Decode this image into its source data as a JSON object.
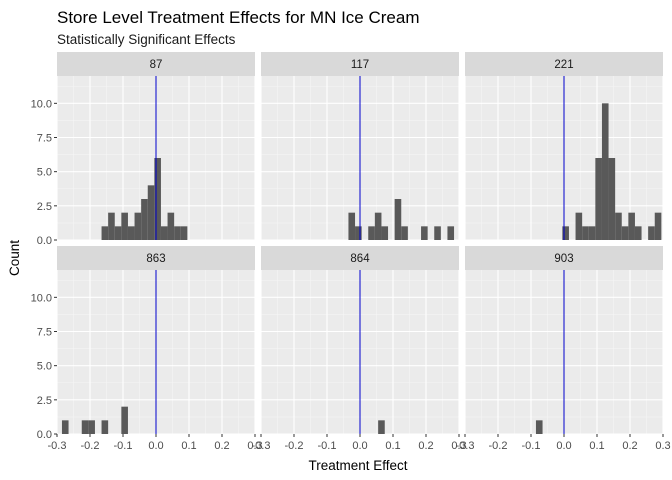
{
  "chart_data": {
    "type": "bar",
    "title": "Store Level Treatment Effects for MN Ice Cream",
    "subtitle": "Statistically Significant Effects",
    "xlabel": "Treatment Effect",
    "ylabel": "Count",
    "xlim": [
      -0.3,
      0.3
    ],
    "ylim": [
      0,
      12
    ],
    "x_ticks": [
      -0.3,
      -0.2,
      -0.1,
      0.0,
      0.1,
      0.2,
      0.3
    ],
    "x_tick_labels": [
      "-0.3",
      "-0.2",
      "-0.1",
      "0.0",
      "0.1",
      "0.2",
      "0.3"
    ],
    "y_ticks": [
      0,
      2.5,
      5,
      7.5,
      10
    ],
    "y_tick_labels": [
      "0.0",
      "2.5",
      "5.0",
      "7.5",
      "10.0"
    ],
    "bin_width": 0.02,
    "grid": true,
    "reference_line": {
      "x": 0,
      "color": "#0000cc"
    },
    "bar_color": "#595959",
    "facets": [
      {
        "label": "87",
        "bins": [
          {
            "x": -0.155,
            "count": 1
          },
          {
            "x": -0.135,
            "count": 2
          },
          {
            "x": -0.115,
            "count": 1
          },
          {
            "x": -0.095,
            "count": 2
          },
          {
            "x": -0.075,
            "count": 1
          },
          {
            "x": -0.055,
            "count": 2
          },
          {
            "x": -0.035,
            "count": 3
          },
          {
            "x": -0.015,
            "count": 4
          },
          {
            "x": 0.005,
            "count": 6
          },
          {
            "x": 0.025,
            "count": 1
          },
          {
            "x": 0.045,
            "count": 2
          },
          {
            "x": 0.065,
            "count": 1
          },
          {
            "x": 0.085,
            "count": 1
          }
        ]
      },
      {
        "label": "117",
        "bins": [
          {
            "x": -0.025,
            "count": 2
          },
          {
            "x": -0.005,
            "count": 1
          },
          {
            "x": 0.035,
            "count": 1
          },
          {
            "x": 0.055,
            "count": 2
          },
          {
            "x": 0.075,
            "count": 1
          },
          {
            "x": 0.115,
            "count": 3
          },
          {
            "x": 0.135,
            "count": 1
          },
          {
            "x": 0.195,
            "count": 1
          },
          {
            "x": 0.235,
            "count": 1
          },
          {
            "x": 0.275,
            "count": 1
          }
        ]
      },
      {
        "label": "221",
        "bins": [
          {
            "x": 0.005,
            "count": 1
          },
          {
            "x": 0.045,
            "count": 2
          },
          {
            "x": 0.065,
            "count": 1
          },
          {
            "x": 0.085,
            "count": 1
          },
          {
            "x": 0.105,
            "count": 6
          },
          {
            "x": 0.125,
            "count": 10
          },
          {
            "x": 0.145,
            "count": 6
          },
          {
            "x": 0.165,
            "count": 2
          },
          {
            "x": 0.185,
            "count": 1
          },
          {
            "x": 0.205,
            "count": 2
          },
          {
            "x": 0.225,
            "count": 1
          },
          {
            "x": 0.265,
            "count": 1
          },
          {
            "x": 0.285,
            "count": 2
          }
        ]
      },
      {
        "label": "863",
        "bins": [
          {
            "x": -0.275,
            "count": 1
          },
          {
            "x": -0.215,
            "count": 1
          },
          {
            "x": -0.195,
            "count": 1
          },
          {
            "x": -0.155,
            "count": 1
          },
          {
            "x": -0.095,
            "count": 2
          }
        ]
      },
      {
        "label": "864",
        "bins": [
          {
            "x": 0.065,
            "count": 1
          }
        ]
      },
      {
        "label": "903",
        "bins": [
          {
            "x": -0.075,
            "count": 1
          }
        ]
      }
    ]
  }
}
